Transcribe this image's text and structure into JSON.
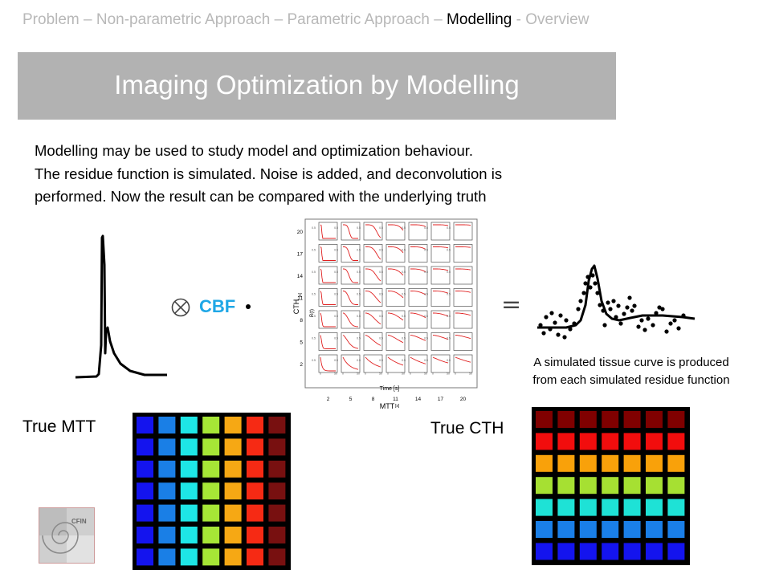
{
  "breadcrumb": {
    "items": [
      {
        "label": "Problem – Non-parametric Approach – Parametric Approach –",
        "active": false
      },
      {
        "label": "Modelling",
        "active": true
      },
      {
        "label": "- Overview",
        "active": false
      }
    ]
  },
  "title": "Imaging Optimization  by Modelling",
  "body_lines": [
    "Modelling may be used to study model and optimization behaviour.",
    "The residue function is simulated. Noise is added, and deconvolution is",
    "performed. Now the result can be compared with the underlying truth"
  ],
  "equation": {
    "operator_glyph": "⊗",
    "cbf_label": "CBF",
    "equals_glyph": "="
  },
  "grid_plot": {
    "y_axis_label": "CTH",
    "y_axis_unit": "[s]",
    "y_ticks": [
      "20",
      "17",
      "14",
      "11",
      "8",
      "5",
      "2"
    ],
    "inner_y_label": "R(t)",
    "inner_y_tick": "0.5",
    "x_axis_label": "MTT",
    "x_axis_unit": "[s]",
    "x_ticks": [
      "2",
      "5",
      "8",
      "11",
      "14",
      "17",
      "20"
    ],
    "inner_x_label": "Time [s]",
    "inner_x_ticks": [
      "0",
      "50"
    ]
  },
  "caption_lines": [
    "A simulated tissue curve is produced",
    "from each simulated residue function"
  ],
  "true_mtt": {
    "label": "True MTT",
    "column_colors": [
      "#1414ee",
      "#1a7fe6",
      "#1ee6e6",
      "#a6e636",
      "#f6a814",
      "#f62a14",
      "#781010"
    ]
  },
  "true_cth": {
    "label": "True CTH",
    "row_colors": [
      "#800000",
      "#f20d0d",
      "#f9a10a",
      "#a6e032",
      "#1ee2d6",
      "#1a7fe8",
      "#1414ee"
    ]
  },
  "logo": {
    "text": "CFIN"
  }
}
